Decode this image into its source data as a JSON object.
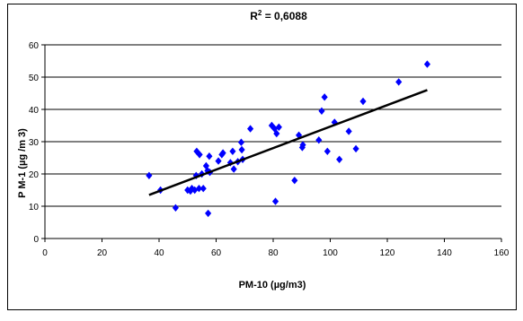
{
  "chart_data": {
    "type": "scatter",
    "title": "R² = 0,6088",
    "title_base": "R",
    "title_sup": "2",
    "title_rest": " = 0,6088",
    "xlabel": "PM-10 (µg/m3)",
    "ylabel": "P M-1  (µg /m 3)",
    "xlim": [
      0,
      160
    ],
    "ylim": [
      0,
      60
    ],
    "xticks": [
      "0",
      "20",
      "40",
      "60",
      "80",
      "100",
      "120",
      "140",
      "160"
    ],
    "yticks": [
      "0",
      "10",
      "20",
      "30",
      "40",
      "50",
      "60"
    ],
    "grid": "horizontal",
    "legend": "none",
    "colors": {
      "marker": "#0000ff",
      "trendline": "#000000",
      "grid": "#000000"
    },
    "series": [
      {
        "points": [
          [
            36.5,
            19.5
          ],
          [
            40.5,
            15
          ],
          [
            45.8,
            9.5
          ],
          [
            50,
            15
          ],
          [
            51,
            14.7
          ],
          [
            51.5,
            15.5
          ],
          [
            52.5,
            15
          ],
          [
            53,
            19.5
          ],
          [
            53.2,
            27
          ],
          [
            54,
            15.5
          ],
          [
            54.2,
            26
          ],
          [
            55,
            20
          ],
          [
            55.5,
            15.5
          ],
          [
            56.5,
            22.5
          ],
          [
            57,
            21
          ],
          [
            57.2,
            7.8
          ],
          [
            57.6,
            25.5
          ],
          [
            57.8,
            20.5
          ],
          [
            60.8,
            24
          ],
          [
            62,
            26
          ],
          [
            62.4,
            26.5
          ],
          [
            65,
            23.5
          ],
          [
            65.8,
            27
          ],
          [
            66.2,
            21.5
          ],
          [
            67.6,
            23.8
          ],
          [
            68.8,
            29.8
          ],
          [
            69,
            27.5
          ],
          [
            69.3,
            24.5
          ],
          [
            72,
            34
          ],
          [
            79.5,
            35
          ],
          [
            80.5,
            34
          ],
          [
            80.8,
            11.5
          ],
          [
            81.2,
            32.5
          ],
          [
            82,
            34.5
          ],
          [
            87.5,
            18
          ],
          [
            89,
            32
          ],
          [
            90.2,
            28.2
          ],
          [
            90.4,
            29
          ],
          [
            96,
            30.5
          ],
          [
            97,
            39.5
          ],
          [
            98,
            43.8
          ],
          [
            99,
            27
          ],
          [
            101.5,
            36
          ],
          [
            103.2,
            24.5
          ],
          [
            106.5,
            33.2
          ],
          [
            109,
            27.8
          ],
          [
            111.5,
            42.5
          ],
          [
            124,
            48.5
          ],
          [
            134,
            54
          ]
        ]
      }
    ],
    "trendline": {
      "x": [
        36.5,
        134
      ],
      "y": [
        13.5,
        46
      ]
    }
  }
}
